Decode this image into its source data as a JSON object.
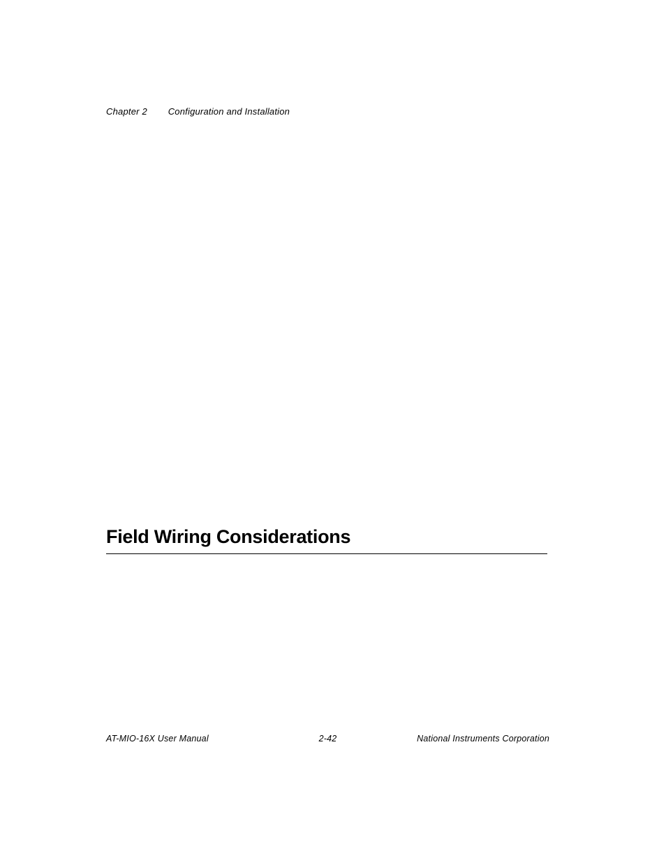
{
  "header": {
    "chapter": "Chapter 2",
    "title": "Configuration and Installation"
  },
  "section": {
    "heading": "Field Wiring Considerations"
  },
  "footer": {
    "left": "AT-MIO-16X User Manual",
    "center": "2-42",
    "right": "National Instruments Corporation"
  }
}
